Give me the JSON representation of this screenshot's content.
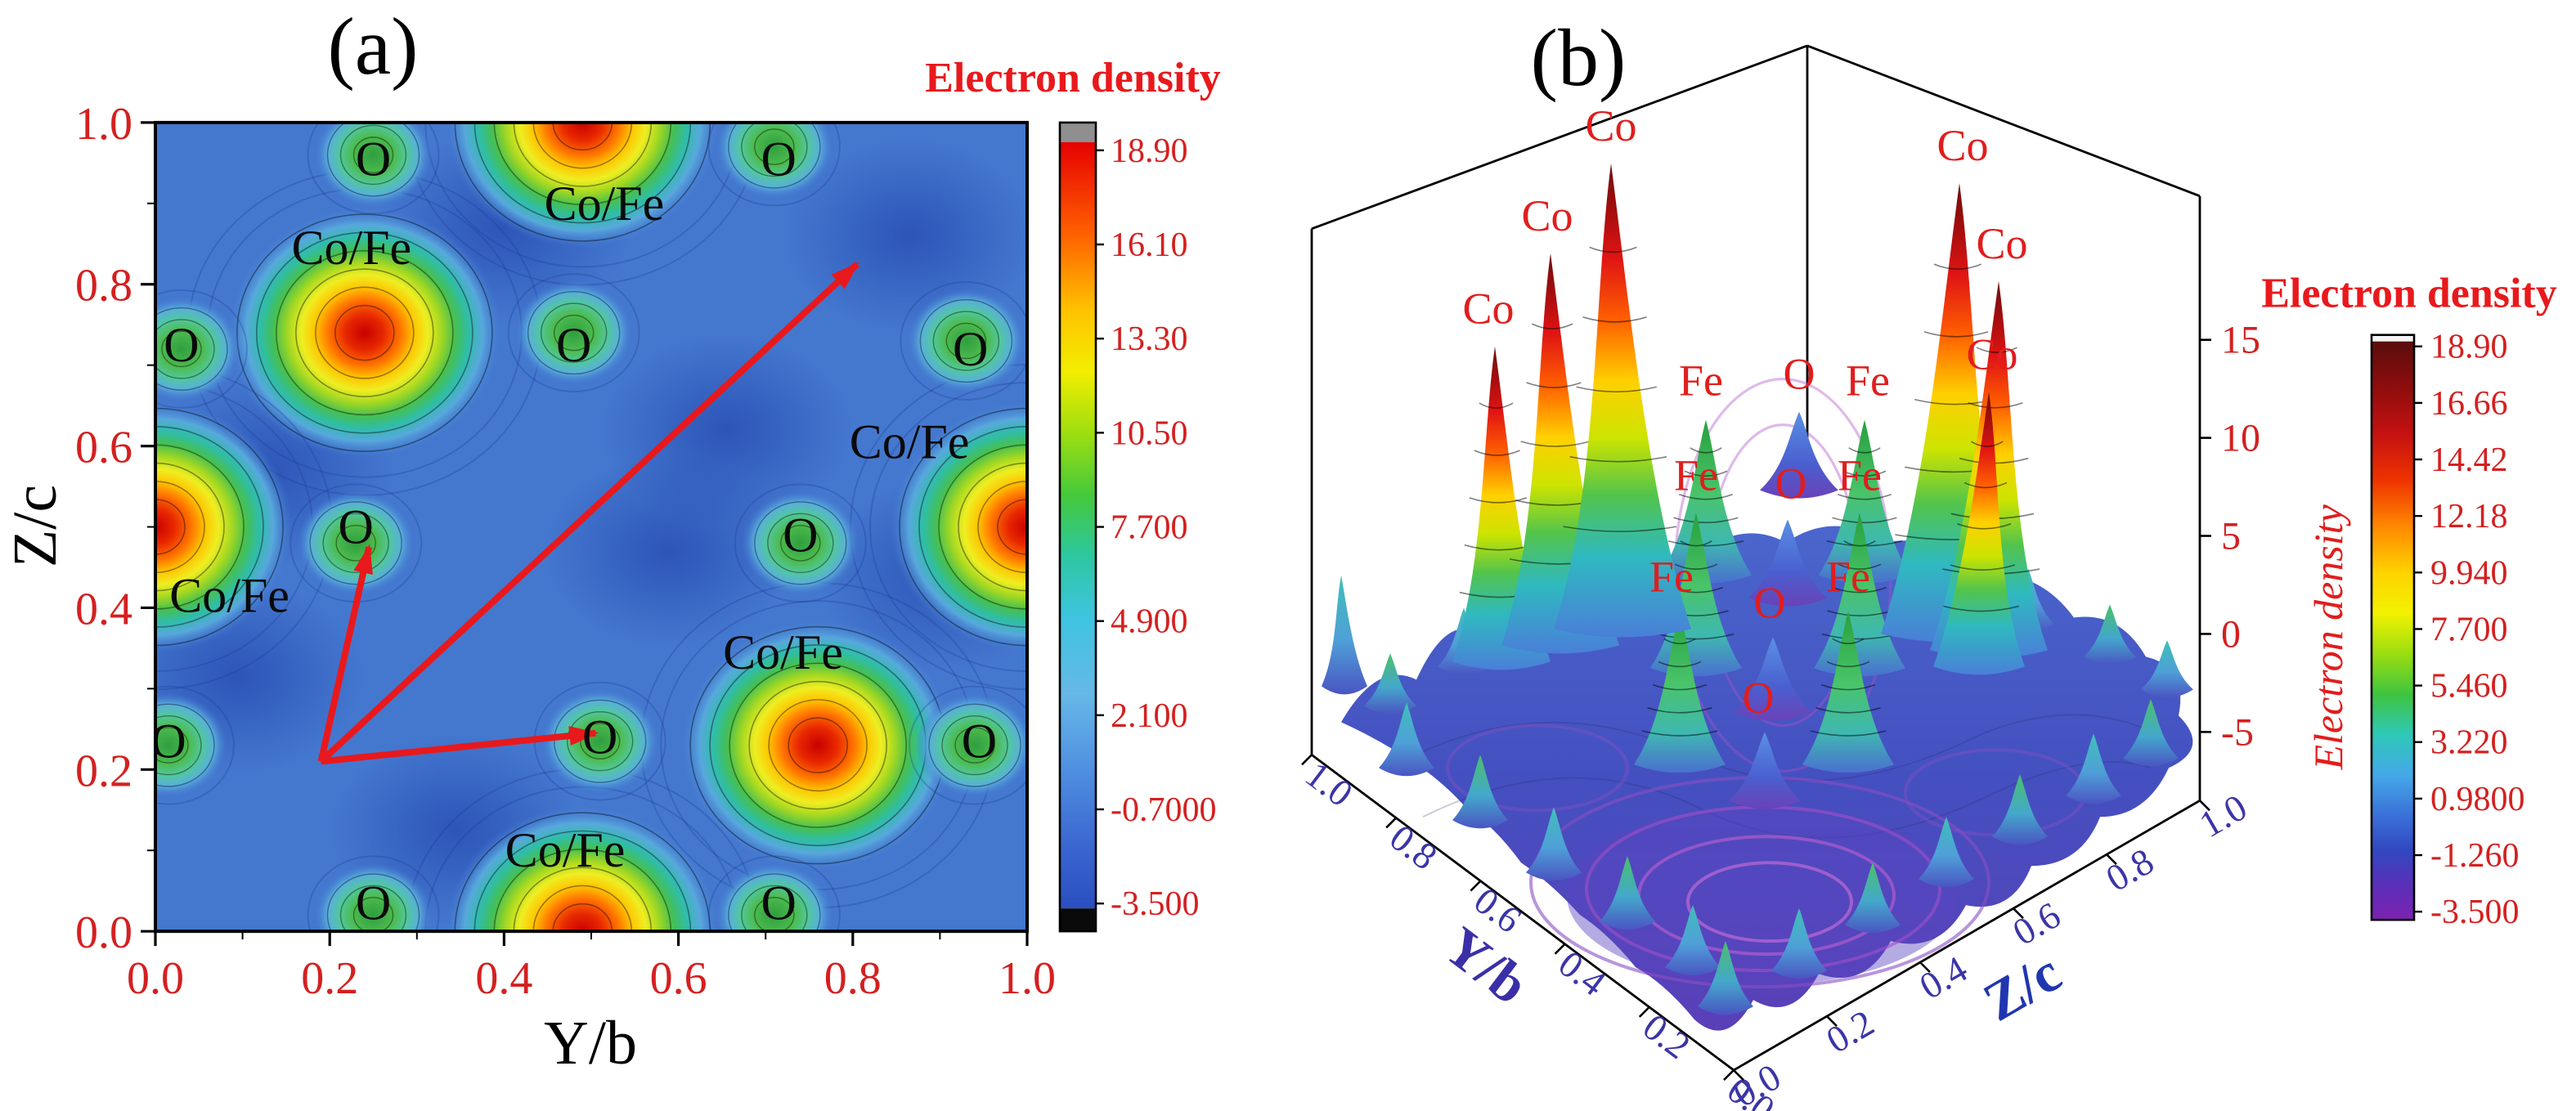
{
  "colors": {
    "accent_red": "#e8191c",
    "tick_red": "#d42020",
    "axis_purple": "#3b2fa8",
    "axis_blue": "#2036b0",
    "background_blue": "#4478cf"
  },
  "chart_data": [
    {
      "panel_label": "(a)",
      "type": "heatmap",
      "description": "2D electron density contour map in the Y/b - Z/c plane with Co/Fe and O atomic sites",
      "xlabel": "Y/b",
      "ylabel": "Z/c",
      "x_ticks": [
        "0.0",
        "0.2",
        "0.4",
        "0.6",
        "0.8",
        "1.0"
      ],
      "y_ticks": [
        "1.0",
        "0.8",
        "0.6",
        "0.4",
        "0.2",
        "0.0"
      ],
      "xlim": [
        0,
        1
      ],
      "ylim": [
        0,
        1
      ],
      "value_range": [
        -3.5,
        18.9
      ],
      "colorbar": {
        "title": "Electron density",
        "ticks": [
          "18.90",
          "16.10",
          "13.30",
          "10.50",
          "7.700",
          "4.900",
          "2.100",
          "-0.7000",
          "-3.500"
        ]
      },
      "cofe_peaks": [
        [
          0.24,
          0.74
        ],
        [
          0.49,
          1.0
        ],
        [
          0.0,
          0.5
        ],
        [
          1.0,
          0.5
        ],
        [
          0.76,
          0.23
        ],
        [
          0.49,
          0.0
        ]
      ],
      "o_peaks": [
        [
          0.25,
          0.96
        ],
        [
          0.71,
          0.97
        ],
        [
          0.03,
          0.72
        ],
        [
          0.48,
          0.74
        ],
        [
          0.93,
          0.73
        ],
        [
          0.015,
          0.23
        ],
        [
          0.23,
          0.48
        ],
        [
          0.74,
          0.48
        ],
        [
          0.51,
          0.235
        ],
        [
          0.94,
          0.23
        ],
        [
          0.25,
          0.02
        ],
        [
          0.71,
          0.02
        ]
      ],
      "dark_regions": [
        [
          0.4,
          0.87
        ],
        [
          0.655,
          0.62
        ],
        [
          0.13,
          0.57
        ],
        [
          0.865,
          0.86
        ],
        [
          0.345,
          0.125
        ],
        [
          0.095,
          0.315
        ],
        [
          0.905,
          0.44
        ],
        [
          0.59,
          0.47
        ]
      ],
      "atom_labels": [
        {
          "text": "O",
          "x": 0.25,
          "y": 0.955
        },
        {
          "text": "Co/Fe",
          "x": 0.515,
          "y": 0.9
        },
        {
          "text": "O",
          "x": 0.715,
          "y": 0.955
        },
        {
          "text": "Co/Fe",
          "x": 0.225,
          "y": 0.845
        },
        {
          "text": "O",
          "x": 0.03,
          "y": 0.725
        },
        {
          "text": "O",
          "x": 0.48,
          "y": 0.725
        },
        {
          "text": "O",
          "x": 0.935,
          "y": 0.72
        },
        {
          "text": "Co/Fe",
          "x": 0.865,
          "y": 0.605
        },
        {
          "text": "O",
          "x": 0.23,
          "y": 0.5
        },
        {
          "text": "O",
          "x": 0.74,
          "y": 0.49
        },
        {
          "text": "Co/Fe",
          "x": 0.085,
          "y": 0.415
        },
        {
          "text": "Co/Fe",
          "x": 0.72,
          "y": 0.345
        },
        {
          "text": "O",
          "x": 0.015,
          "y": 0.235
        },
        {
          "text": "O",
          "x": 0.51,
          "y": 0.24
        },
        {
          "text": "O",
          "x": 0.945,
          "y": 0.235
        },
        {
          "text": "Co/Fe",
          "x": 0.47,
          "y": 0.1
        },
        {
          "text": "O",
          "x": 0.25,
          "y": 0.035
        },
        {
          "text": "O",
          "x": 0.715,
          "y": 0.035
        }
      ],
      "arrows": {
        "origin": [
          0.19,
          0.21
        ],
        "targets": [
          [
            0.805,
            0.825
          ],
          [
            0.245,
            0.475
          ],
          [
            0.505,
            0.245
          ]
        ]
      }
    },
    {
      "panel_label": "(b)",
      "type": "surface",
      "description": "3D electron density surface over the Y/b - Z/c plane with Co, Fe and O peaks",
      "yb_axis": {
        "title": "Y/b",
        "ticks": [
          "1.0",
          "0.8",
          "0.6",
          "0.4",
          "0.2",
          "0.0"
        ]
      },
      "zc_axis": {
        "title": "Z/c",
        "ticks": [
          "0.0",
          "0.2",
          "0.4",
          "0.6",
          "0.8",
          "1.0"
        ]
      },
      "z_axis": {
        "title": "Electron density",
        "ticks": [
          "15",
          "10",
          "5",
          "0",
          "-5"
        ]
      },
      "value_range": [
        -3.5,
        18.9
      ],
      "colorbar": {
        "title": "Electron density",
        "ticks": [
          "18.90",
          "16.66",
          "14.42",
          "12.18",
          "9.940",
          "7.700",
          "5.460",
          "3.220",
          "0.9800",
          "-1.260",
          "-3.500"
        ]
      },
      "peak_labels": [
        {
          "text": "Co",
          "x": 195,
          "y": 86
        },
        {
          "text": "Co",
          "x": 156,
          "y": 141
        },
        {
          "text": "Co",
          "x": 120,
          "y": 198
        },
        {
          "text": "Co",
          "x": 410,
          "y": 98
        },
        {
          "text": "Co",
          "x": 434,
          "y": 158
        },
        {
          "text": "Co",
          "x": 428,
          "y": 226
        },
        {
          "text": "Fe",
          "x": 250,
          "y": 242
        },
        {
          "text": "Fe",
          "x": 352,
          "y": 242
        },
        {
          "text": "Fe",
          "x": 247,
          "y": 300
        },
        {
          "text": "Fe",
          "x": 347,
          "y": 300
        },
        {
          "text": "Fe",
          "x": 232,
          "y": 362
        },
        {
          "text": "Fe",
          "x": 340,
          "y": 362
        },
        {
          "text": "O",
          "x": 310,
          "y": 238
        },
        {
          "text": "O",
          "x": 305,
          "y": 305
        },
        {
          "text": "O",
          "x": 292,
          "y": 378
        },
        {
          "text": "O",
          "x": 285,
          "y": 436
        }
      ]
    }
  ]
}
